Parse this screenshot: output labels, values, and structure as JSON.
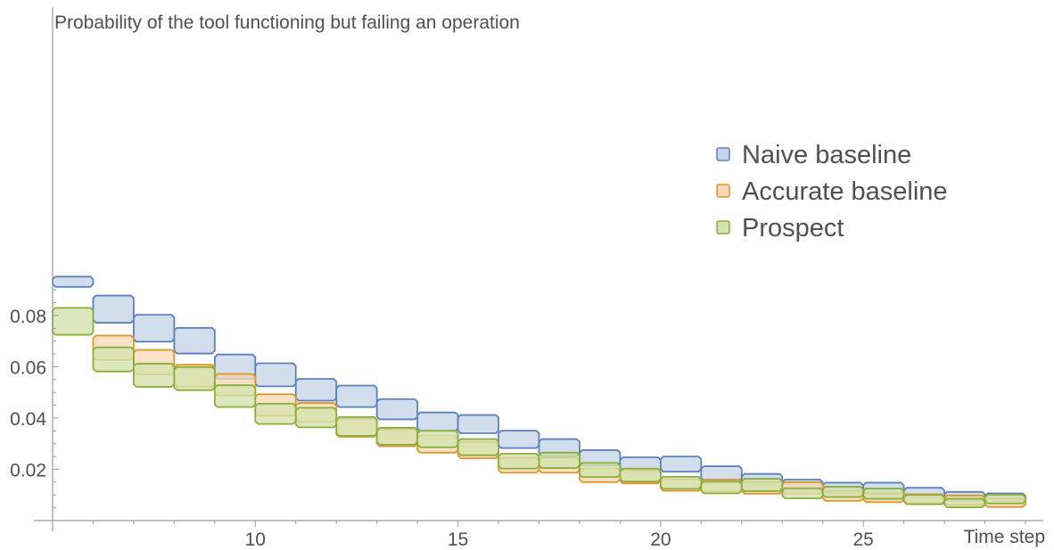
{
  "chart_data": {
    "type": "area",
    "title": "Probability of the tool functioning but failing an operation",
    "xlabel": "Time step",
    "ylabel": "",
    "xlim": [
      5,
      29.2
    ],
    "ylim": [
      0,
      0.097
    ],
    "xticks": [
      10,
      15,
      20,
      25
    ],
    "xtick_labels": [
      "10",
      "15",
      "20",
      "25"
    ],
    "yticks": [
      0.02,
      0.04,
      0.06,
      0.08
    ],
    "ytick_labels": [
      "0.02",
      "0.04",
      "0.06",
      "0.08"
    ],
    "legend_position": "right",
    "grid": false,
    "series": [
      {
        "name": "Naive baseline",
        "stroke": "#5b80bd",
        "fill": "#c7d5e8",
        "steps": [
          {
            "x0": 5,
            "x1": 6,
            "lower": 0.0912,
            "upper": 0.0952
          },
          {
            "x0": 6,
            "x1": 7,
            "lower": 0.0772,
            "upper": 0.0878
          },
          {
            "x0": 7,
            "x1": 8,
            "lower": 0.0698,
            "upper": 0.0803
          },
          {
            "x0": 8,
            "x1": 9,
            "lower": 0.0652,
            "upper": 0.0752
          },
          {
            "x0": 9,
            "x1": 10,
            "lower": 0.0553,
            "upper": 0.0648
          },
          {
            "x0": 10,
            "x1": 11,
            "lower": 0.0524,
            "upper": 0.0614
          },
          {
            "x0": 11,
            "x1": 12,
            "lower": 0.0468,
            "upper": 0.0553
          },
          {
            "x0": 12,
            "x1": 13,
            "lower": 0.0443,
            "upper": 0.0527
          },
          {
            "x0": 13,
            "x1": 14,
            "lower": 0.0395,
            "upper": 0.0474
          },
          {
            "x0": 14,
            "x1": 15,
            "lower": 0.0349,
            "upper": 0.0422
          },
          {
            "x0": 15,
            "x1": 16,
            "lower": 0.0341,
            "upper": 0.0412
          },
          {
            "x0": 16,
            "x1": 17,
            "lower": 0.0283,
            "upper": 0.0351
          },
          {
            "x0": 17,
            "x1": 18,
            "lower": 0.0252,
            "upper": 0.0318
          },
          {
            "x0": 18,
            "x1": 19,
            "lower": 0.0215,
            "upper": 0.0275
          },
          {
            "x0": 19,
            "x1": 20,
            "lower": 0.0192,
            "upper": 0.0247
          },
          {
            "x0": 20,
            "x1": 21,
            "lower": 0.0191,
            "upper": 0.025
          },
          {
            "x0": 21,
            "x1": 22,
            "lower": 0.0155,
            "upper": 0.0212
          },
          {
            "x0": 22,
            "x1": 23,
            "lower": 0.0133,
            "upper": 0.0182
          },
          {
            "x0": 23,
            "x1": 24,
            "lower": 0.0117,
            "upper": 0.016
          },
          {
            "x0": 24,
            "x1": 25,
            "lower": 0.0106,
            "upper": 0.0148
          },
          {
            "x0": 25,
            "x1": 26,
            "lower": 0.0104,
            "upper": 0.0148
          },
          {
            "x0": 26,
            "x1": 27,
            "lower": 0.0089,
            "upper": 0.0128
          },
          {
            "x0": 27,
            "x1": 28,
            "lower": 0.0076,
            "upper": 0.0112
          },
          {
            "x0": 28,
            "x1": 29,
            "lower": 0.007,
            "upper": 0.0106
          }
        ]
      },
      {
        "name": "Accurate baseline",
        "stroke": "#e0952a",
        "fill": "#f6d9b4",
        "steps": [
          {
            "x0": 6,
            "x1": 7,
            "lower": 0.0627,
            "upper": 0.0722
          },
          {
            "x0": 7,
            "x1": 8,
            "lower": 0.057,
            "upper": 0.0666
          },
          {
            "x0": 8,
            "x1": 9,
            "lower": 0.0522,
            "upper": 0.0608
          },
          {
            "x0": 9,
            "x1": 10,
            "lower": 0.0488,
            "upper": 0.0572
          },
          {
            "x0": 10,
            "x1": 11,
            "lower": 0.0409,
            "upper": 0.0493
          },
          {
            "x0": 11,
            "x1": 12,
            "lower": 0.0385,
            "upper": 0.0459
          },
          {
            "x0": 12,
            "x1": 13,
            "lower": 0.0327,
            "upper": 0.0398
          },
          {
            "x0": 13,
            "x1": 14,
            "lower": 0.029,
            "upper": 0.0355
          },
          {
            "x0": 14,
            "x1": 15,
            "lower": 0.0265,
            "upper": 0.0332
          },
          {
            "x0": 15,
            "x1": 16,
            "lower": 0.0243,
            "upper": 0.0306
          },
          {
            "x0": 16,
            "x1": 17,
            "lower": 0.0187,
            "upper": 0.0245
          },
          {
            "x0": 17,
            "x1": 18,
            "lower": 0.0187,
            "upper": 0.0245
          },
          {
            "x0": 18,
            "x1": 19,
            "lower": 0.015,
            "upper": 0.0203
          },
          {
            "x0": 19,
            "x1": 20,
            "lower": 0.0145,
            "upper": 0.0198
          },
          {
            "x0": 20,
            "x1": 21,
            "lower": 0.0116,
            "upper": 0.0161
          },
          {
            "x0": 21,
            "x1": 22,
            "lower": 0.0113,
            "upper": 0.016
          },
          {
            "x0": 22,
            "x1": 23,
            "lower": 0.0105,
            "upper": 0.015
          },
          {
            "x0": 23,
            "x1": 24,
            "lower": 0.0105,
            "upper": 0.015
          },
          {
            "x0": 24,
            "x1": 25,
            "lower": 0.0077,
            "upper": 0.0115
          },
          {
            "x0": 25,
            "x1": 26,
            "lower": 0.0072,
            "upper": 0.0107
          },
          {
            "x0": 26,
            "x1": 27,
            "lower": 0.0068,
            "upper": 0.0103
          },
          {
            "x0": 27,
            "x1": 28,
            "lower": 0.0062,
            "upper": 0.0098
          },
          {
            "x0": 28,
            "x1": 29,
            "lower": 0.0053,
            "upper": 0.0085
          }
        ]
      },
      {
        "name": "Prospect",
        "stroke": "#8aae3a",
        "fill": "#d4e2ad",
        "steps": [
          {
            "x0": 5,
            "x1": 6,
            "lower": 0.0725,
            "upper": 0.083
          },
          {
            "x0": 6,
            "x1": 7,
            "lower": 0.0582,
            "upper": 0.0676
          },
          {
            "x0": 7,
            "x1": 8,
            "lower": 0.0522,
            "upper": 0.0612
          },
          {
            "x0": 8,
            "x1": 9,
            "lower": 0.0509,
            "upper": 0.0599
          },
          {
            "x0": 9,
            "x1": 10,
            "lower": 0.0443,
            "upper": 0.0528
          },
          {
            "x0": 10,
            "x1": 11,
            "lower": 0.0377,
            "upper": 0.0456
          },
          {
            "x0": 11,
            "x1": 12,
            "lower": 0.0364,
            "upper": 0.044
          },
          {
            "x0": 12,
            "x1": 13,
            "lower": 0.0331,
            "upper": 0.0404
          },
          {
            "x0": 13,
            "x1": 14,
            "lower": 0.0296,
            "upper": 0.0362
          },
          {
            "x0": 14,
            "x1": 15,
            "lower": 0.0286,
            "upper": 0.0351
          },
          {
            "x0": 15,
            "x1": 16,
            "lower": 0.0255,
            "upper": 0.0318
          },
          {
            "x0": 16,
            "x1": 17,
            "lower": 0.0203,
            "upper": 0.0261
          },
          {
            "x0": 17,
            "x1": 18,
            "lower": 0.0205,
            "upper": 0.0265
          },
          {
            "x0": 18,
            "x1": 19,
            "lower": 0.017,
            "upper": 0.0225
          },
          {
            "x0": 19,
            "x1": 20,
            "lower": 0.0152,
            "upper": 0.0203
          },
          {
            "x0": 20,
            "x1": 21,
            "lower": 0.0124,
            "upper": 0.0171
          },
          {
            "x0": 21,
            "x1": 22,
            "lower": 0.0106,
            "upper": 0.0152
          },
          {
            "x0": 22,
            "x1": 23,
            "lower": 0.0115,
            "upper": 0.0163
          },
          {
            "x0": 23,
            "x1": 24,
            "lower": 0.0087,
            "upper": 0.0126
          },
          {
            "x0": 24,
            "x1": 25,
            "lower": 0.0092,
            "upper": 0.0132
          },
          {
            "x0": 25,
            "x1": 26,
            "lower": 0.0085,
            "upper": 0.0125
          },
          {
            "x0": 26,
            "x1": 27,
            "lower": 0.0064,
            "upper": 0.01
          },
          {
            "x0": 27,
            "x1": 28,
            "lower": 0.0052,
            "upper": 0.0085
          },
          {
            "x0": 28,
            "x1": 29,
            "lower": 0.0067,
            "upper": 0.0101
          }
        ]
      }
    ]
  }
}
